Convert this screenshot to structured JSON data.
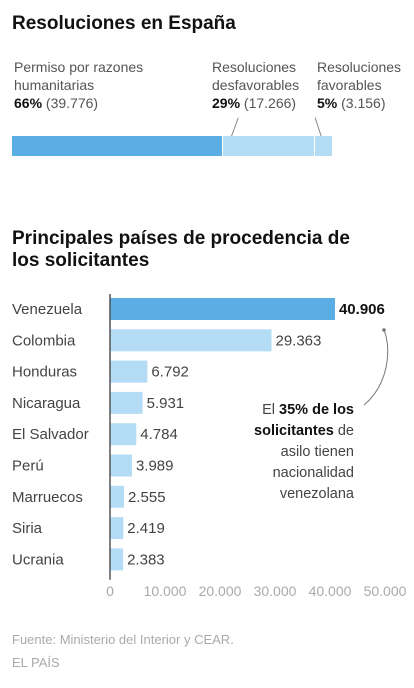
{
  "chart_data": [
    {
      "type": "bar",
      "orientation": "horizontal-stacked",
      "title": "Resoluciones en España",
      "segments": [
        {
          "label_lines": [
            "Permiso por razones",
            "humanitarias"
          ],
          "percent": "66%",
          "count": "(39.776)",
          "value": 39776,
          "color": "#5aaee3"
        },
        {
          "label_lines": [
            "Resoluciones",
            "desfavorables"
          ],
          "percent": "29%",
          "count": "(17.266)",
          "value": 17266,
          "color": "#b5dcf5"
        },
        {
          "label_lines": [
            "Resoluciones",
            "favorables"
          ],
          "percent": "5%",
          "count": "(3.156)",
          "value": 3156,
          "color": "#b5dcf5"
        }
      ]
    },
    {
      "type": "bar",
      "orientation": "horizontal",
      "title": "Principales países de procedencia de los solicitantes",
      "categories": [
        "Venezuela",
        "Colombia",
        "Honduras",
        "Nicaragua",
        "El Salvador",
        "Perú",
        "Marruecos",
        "Siria",
        "Ucrania"
      ],
      "values": [
        40906,
        29363,
        6792,
        5931,
        4784,
        3989,
        2555,
        2419,
        2383
      ],
      "value_labels": [
        "40.906",
        "29.363",
        "6.792",
        "5.931",
        "4.784",
        "3.989",
        "2.555",
        "2.419",
        "2.383"
      ],
      "xlim": [
        0,
        50000
      ],
      "xticks": [
        0,
        10000,
        20000,
        30000,
        40000,
        50000
      ],
      "xtick_labels": [
        "0",
        "10.000",
        "20.000",
        "30.000",
        "40.000",
        "50.000"
      ],
      "highlight_color": "#5aaee3",
      "bar_color": "#b5dcf5",
      "annotation": {
        "pre": "El ",
        "bold": "35% de los solicitantes",
        "post": " de asilo tienen nacionalidad venezolana"
      }
    }
  ],
  "footer": {
    "source": "Fuente: Ministerio del Interior y CEAR.",
    "brand": "EL PAÍS"
  }
}
